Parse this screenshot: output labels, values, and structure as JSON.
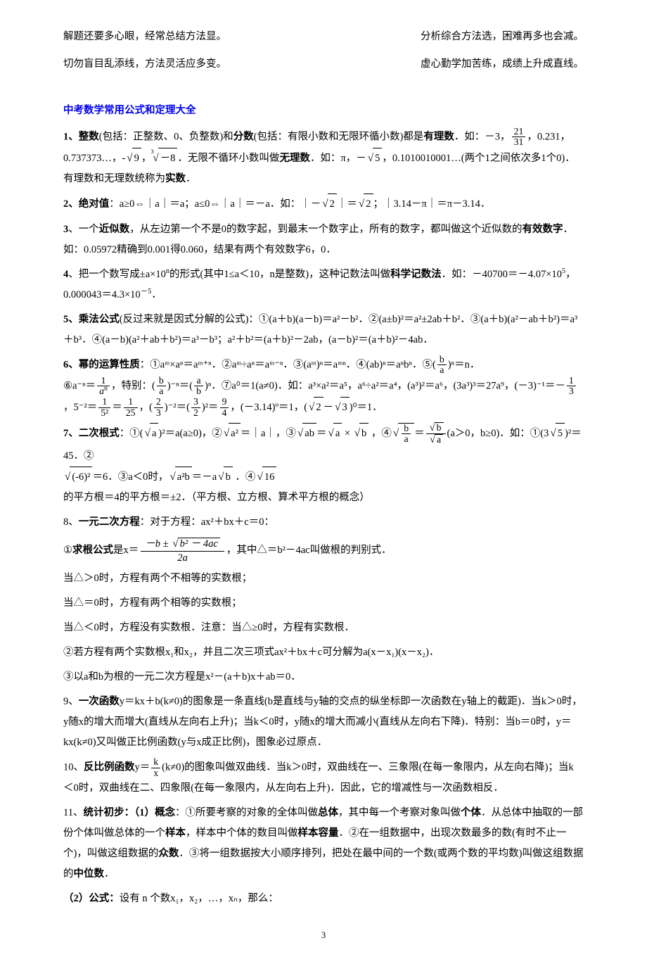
{
  "top": {
    "l1": "解题还要多心眼，经常总结方法显。",
    "r1": "分析综合方法选，困难再多也会减。",
    "l2": "切勿盲目乱添线，方法灵活应多变。",
    "r2": "虚心勤学加苦练，成绩上升成直线。"
  },
  "section_title": "中考数学常用公式和定理大全",
  "items": {
    "i1_a": "1、整数",
    "i1_b": "(包括：正整数、0、负整数)和",
    "i1_c": "分数",
    "i1_d": "(包括：有限小数和无限环循小数)都是",
    "i1_e": "有理数",
    "i1_f": "．如：－3，",
    "i1_frac_num": "21",
    "i1_frac_den": "31",
    "i1_g": "，0.231，0.737373…，-",
    "i1_sqrt9": "9",
    "i1_h": "，",
    "i1_cbrt": "－8",
    "i1_i": "．无限不循环小数叫做",
    "i1_j": "无理数",
    "i1_k": "．如：π，－",
    "i1_sqrt5": "5",
    "i1_l": "，0.1010010001…(两个1之间依次多1个0)．有理数和无理数统称为",
    "i1_m": "实数",
    "i1_n": "．",
    "i2_a": "2、绝对值",
    "i2_b": "：a≥0",
    "i2_c": "｜a｜＝a；a≤0",
    "i2_d": "｜a｜＝－a．如：｜－",
    "i2_sqrt2a": "2",
    "i2_e": "｜＝",
    "i2_sqrt2b": "2",
    "i2_f": "；｜3.14－π｜＝π－3.14．",
    "i3_a": "3",
    "i3_b": "、一个",
    "i3_c": "近似数",
    "i3_d": "，从左边第一个不是0的数字起，到最末一个数字止，所有的数字，都叫做这个近似数的",
    "i3_e": "有效数字",
    "i3_f": "．如：0.05972精确到0.001得0.060，结果有两个有效数字6，0．",
    "i4_a": "4",
    "i4_b": "、把一个数写成±a×10",
    "i4_c": "的形式(其中1≤a＜10，n是整数)，这种记数法叫做",
    "i4_d": "科学记数法",
    "i4_e": "．如：－40700＝－4.07×10",
    "i4_f": "，0.000043＝4.3×10",
    "i4_g": "．",
    "i5_a": "5、乘法公式",
    "i5_b": "(反过来就是因式分解的公式)：①(a＋b)(a－b)＝a²－b²．②(a±b)²＝a²±2ab＋b²．③(a＋b)(a²－ab＋b²)＝a³＋b³．④(a－b)(a²＋ab＋b²)＝a³－b³；a²＋b²＝(a＋b)²－2ab，(a－b)²＝(a＋b)²－4ab．",
    "i6_a": "6、幂的运算性质",
    "i6_b": "：①aᵐ×aⁿ＝aᵐ⁺ⁿ．②aᵐ÷aⁿ＝aᵐ⁻ⁿ．③(aᵐ)ⁿ＝aᵐⁿ．④(ab)ⁿ＝aⁿbⁿ．⑤(",
    "i6_frac1_num": "b",
    "i6_frac1_den": "a",
    "i6_c": ")ⁿ＝n．",
    "i6_d": "⑥a⁻ⁿ＝",
    "i6_frac2_num": "1",
    "i6_frac2_den": "aⁿ",
    "i6_e": "，特别：(",
    "i6_frac3_num": "b",
    "i6_frac3_den": "a",
    "i6_f": ")⁻ⁿ＝(",
    "i6_frac4_num": "a",
    "i6_frac4_den": "b",
    "i6_g": ")ⁿ．⑦a⁰＝1(a≠0)．如：a³×a²＝a⁵，a⁶÷a²＝a⁴，(a³)²＝a⁶，(3a³)³＝27a⁹，(－3)⁻¹＝－",
    "i6_frac5_num": "1",
    "i6_frac5_den": "3",
    "i6_h": "，5⁻²＝",
    "i6_frac6_num": "1",
    "i6_frac6_den": "5²",
    "i6_i": "＝",
    "i6_frac7_num": "1",
    "i6_frac7_den": "25",
    "i6_j": "，(",
    "i6_frac8_num": "2",
    "i6_frac8_den": "3",
    "i6_k": ")⁻²＝(",
    "i6_frac9_num": "3",
    "i6_frac9_den": "2",
    "i6_l": ")²＝",
    "i6_frac10_num": "9",
    "i6_frac10_den": "4",
    "i6_m": "，(－3.14)º＝1，(",
    "i6_sqrt2": "2",
    "i6_n": "－",
    "i6_sqrt3": "3",
    "i6_o": ")⁰＝1．",
    "i7_a": "7、二次根式",
    "i7_b": "：①(",
    "i7_sqrta1": "a",
    "i7_c": ")²＝a(a≥0)，②",
    "i7_sqrta2": "a²",
    "i7_d": "＝｜a｜，③",
    "i7_sqrtab": "ab",
    "i7_e": "＝",
    "i7_sqrta3": "a",
    "i7_f": " × ",
    "i7_sqrtb1": "b",
    "i7_g": " ，④",
    "i7_fracba_num": "b",
    "i7_fracba_den": "a",
    "i7_h": "＝",
    "i7_frac_sqb": "b",
    "i7_frac_sqa": "a",
    "i7_i": "(a＞0，b≥0)．如：①(3",
    "i7_sqrt5": "5",
    "i7_j": ")²＝45．②",
    "i7_sqrt36": "(-6)²",
    "i7_k": "＝6．③a＜0时，",
    "i7_sqrta2b": "a²b",
    "i7_l": "＝－a",
    "i7_sqrtb2": "b",
    "i7_m": " ．④",
    "i7_sqrt16": "16",
    "i7_n": " 的平方根＝4的平方根＝±2．（平方根、立方根、算术平方根的概念）",
    "i8_a": "8、",
    "i8_b": "一元二次方程",
    "i8_c": "：对于方程：ax²＋bx＋c＝0：",
    "i8_d": "①",
    "i8_e": "求根公式",
    "i8_f": "是x＝",
    "i8_qf_num_a": "－b ± ",
    "i8_qf_rad": "b² － 4ac",
    "i8_qf_den": "2a",
    "i8_g": "，其中△＝b²－4ac叫做根的判别式．",
    "i8_h": "当△＞0时，方程有两个不相等的实数根；",
    "i8_i": "当△＝0时，方程有两个相等的实数根；",
    "i8_j": "当△＜0时，方程没有实数根．注意：当△≥0时，方程有实数根．",
    "i8_k": "②若方程有两个实数根x₁和x₂，并且二次三项式ax²＋bx＋c可分解为a(x－x₁)(x－x₂)．",
    "i8_l": "③以a和b为根的一元二次方程是x²－(a＋b)x＋ab＝0．",
    "i9_a": "9、",
    "i9_b": "一次函数",
    "i9_c": "y＝kx＋b(k≠0)的图象是一条直线(b是直线与y轴的交点的纵坐标即一次函数在y轴上的截距)．当k＞0时，y随x的增大而增大(直线从左向右上升)；当k＜0时，y随x的增大而减小(直线从左向右下降)．特别：当b＝0时，y＝kx(k≠0)又叫做正比例函数(y与x成正比例)，图象必过原点．",
    "i10_a": "10、",
    "i10_b": "反比例函数",
    "i10_c": "y＝",
    "i10_frac_num": "k",
    "i10_frac_den": "x",
    "i10_d": "(k≠0)的图象叫做双曲线．当k＞0时，双曲线在一、三象限(在每一象限内，从左向右降)；当k＜0时，双曲线在二、四象限(在每一象限内，从左向右上升)．因此，它的增减性与一次函数相反．",
    "i11_a": "11、",
    "i11_b": "统计初步",
    "i11_c": "：（1）概念",
    "i11_d": "：①所要考察的对象的全体叫做",
    "i11_e": "总体",
    "i11_f": "，其中每一个考察对象叫做",
    "i11_g": "个体",
    "i11_h": "．从总体中抽取的一部份个体叫做总体的一个",
    "i11_i": "样本",
    "i11_j": "，样本中个体的数目叫做",
    "i11_k": "样本容量",
    "i11_l": "．②在一组数据中，出现次数最多的数(有时不止一个)，叫做这组数据的",
    "i11_m": "众数",
    "i11_n": "．③将一组数据按大小顺序排列，把处在最中间的一个数(或两个数的平均数)叫做这组数据的",
    "i11_o": "中位数",
    "i11_p": "．",
    "i11_q": "（2）公式：",
    "i11_r": "设有 n 个数x₁，x₂，…，xₙ，那么："
  },
  "pagenum": "3"
}
